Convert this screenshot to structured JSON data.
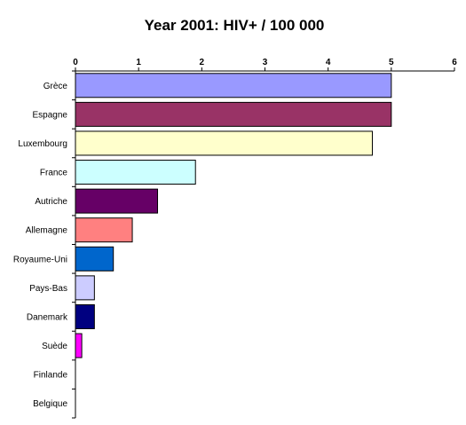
{
  "chart_data": {
    "type": "bar",
    "orientation": "horizontal",
    "title": "Year 2001: HIV+ / 100 000",
    "xlabel": "",
    "ylabel": "",
    "xlim": [
      0,
      6
    ],
    "x_ticks": [
      "0",
      "1",
      "2",
      "3",
      "4",
      "5",
      "6"
    ],
    "x_axis_position": "top",
    "grid": false,
    "legend": "none",
    "categories": [
      "Grèce",
      "Espagne",
      "Luxembourg",
      "France",
      "Autriche",
      "Allemagne",
      "Royaume-Uni",
      "Pays-Bas",
      "Danemark",
      "Suède",
      "Finlande",
      "Belgique"
    ],
    "values": [
      5.0,
      5.0,
      4.7,
      1.9,
      1.3,
      0.9,
      0.6,
      0.3,
      0.3,
      0.1,
      0,
      0
    ],
    "colors": [
      "#9999FF",
      "#993366",
      "#FFFFCC",
      "#CCFFFF",
      "#660066",
      "#FF8080",
      "#0066CC",
      "#CCCCFF",
      "#000080",
      "#FF00FF",
      "#FFFFFF",
      "#FFFFFF"
    ]
  }
}
